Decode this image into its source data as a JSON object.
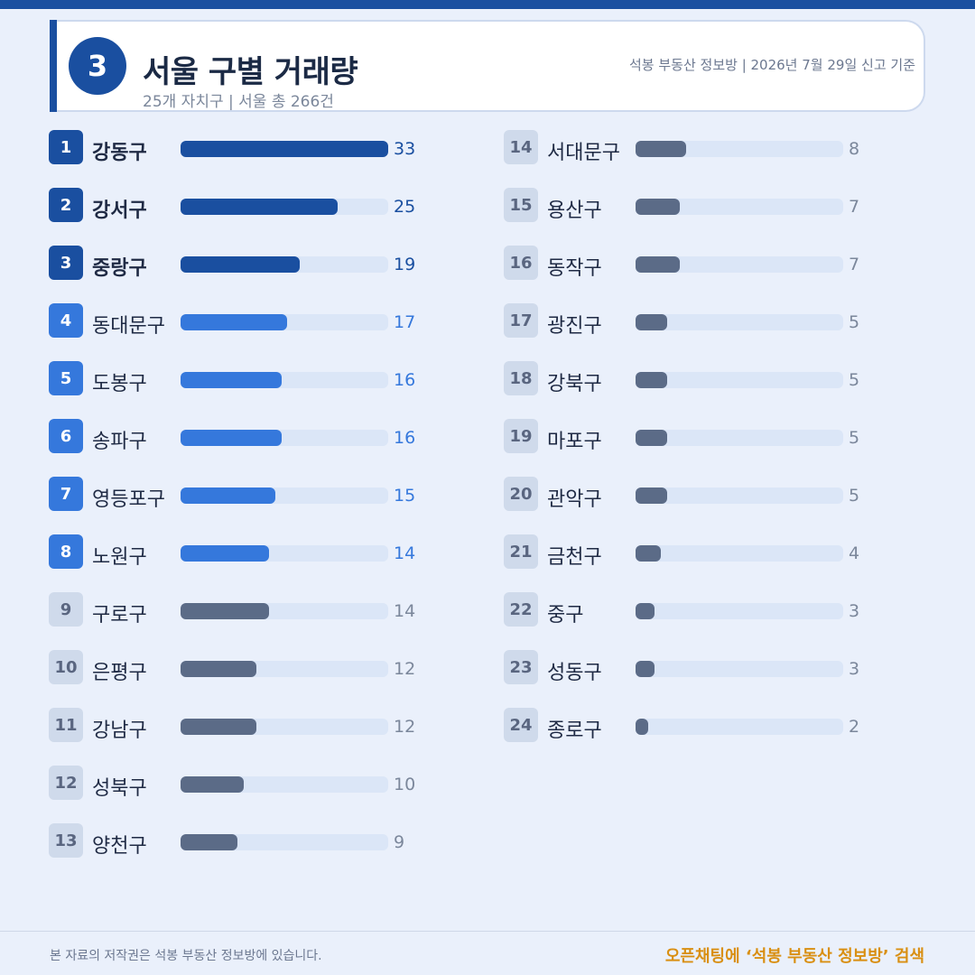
{
  "header": {
    "badge_number": "3",
    "title": "서울 구별 거래량",
    "subtitle": "25개 자치구 | 서울 총 266건",
    "source": "석봉 부동산 정보방 | 2026년 7월 29일 신고 기준"
  },
  "footer": {
    "copyright": "본 자료의 저작권은 석봉 부동산 정보방에 있습니다.",
    "cta": "오픈채팅에 ‘석봉 부동산 정보방’ 검색"
  },
  "colors": {
    "top3": "#1a4fa0",
    "rank4to8": "#3578dc",
    "rest": "#5b6b87",
    "track": "#dbe6f7",
    "cta": "#d98f12"
  },
  "chart_data": {
    "type": "bar",
    "orientation": "horizontal",
    "xlim": [
      0,
      33
    ],
    "categories": [
      "강동구",
      "강서구",
      "중랑구",
      "동대문구",
      "도봉구",
      "송파구",
      "영등포구",
      "노원구",
      "구로구",
      "은평구",
      "강남구",
      "성북구",
      "양천구",
      "서대문구",
      "용산구",
      "동작구",
      "광진구",
      "강북구",
      "마포구",
      "관악구",
      "금천구",
      "중구",
      "성동구",
      "종로구"
    ],
    "ranks": [
      "1",
      "2",
      "3",
      "4",
      "5",
      "6",
      "7",
      "8",
      "9",
      "10",
      "11",
      "12",
      "13",
      "14",
      "15",
      "16",
      "17",
      "18",
      "19",
      "20",
      "21",
      "22",
      "23",
      "24"
    ],
    "values": [
      33,
      25,
      19,
      17,
      16,
      16,
      15,
      14,
      14,
      12,
      12,
      10,
      9,
      8,
      7,
      7,
      5,
      5,
      5,
      5,
      4,
      3,
      3,
      2
    ]
  }
}
